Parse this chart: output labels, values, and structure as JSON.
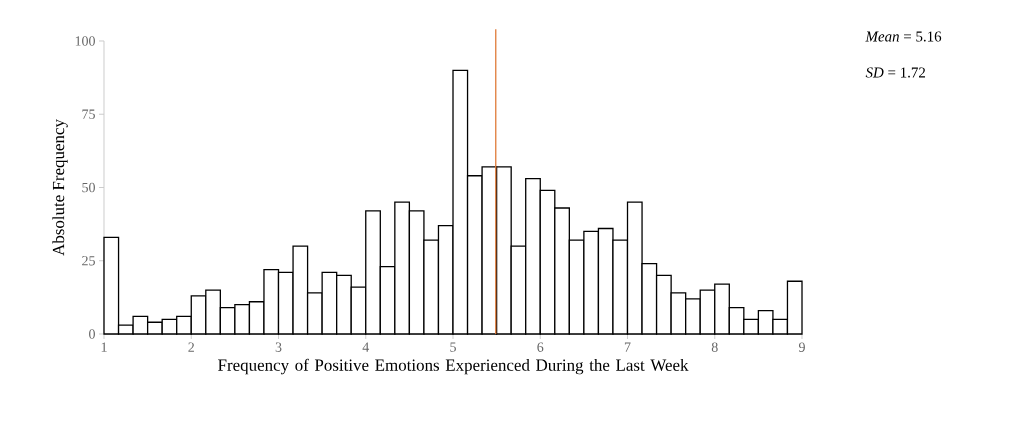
{
  "chart_data": {
    "type": "histogram",
    "xlabel": "Frequency of Positive Emotions Experienced During the Last Week",
    "ylabel": "Absolute Frequency",
    "bins": [
      1,
      1.1667,
      1.3333,
      1.5,
      1.6667,
      1.8333,
      2,
      2.1667,
      2.3333,
      2.5,
      2.6667,
      2.8333,
      3,
      3.1667,
      3.3333,
      3.5,
      3.6667,
      3.8333,
      4,
      4.1667,
      4.3333,
      4.5,
      4.6667,
      4.8333,
      5,
      5.1667,
      5.3333,
      5.5,
      5.6667,
      5.8333,
      6,
      6.1667,
      6.3333,
      6.5,
      6.6667,
      6.8333,
      7,
      7.1667,
      7.3333,
      7.5,
      7.6667,
      7.8333,
      8,
      8.1667,
      8.3333,
      8.5,
      8.6667,
      8.8333,
      9
    ],
    "values": [
      33,
      3,
      6,
      4,
      5,
      6,
      13,
      15,
      9,
      10,
      11,
      22,
      21,
      30,
      14,
      21,
      20,
      16,
      42,
      23,
      45,
      42,
      32,
      37,
      90,
      54,
      57,
      57,
      30,
      53,
      49,
      43,
      32,
      35,
      36,
      32,
      45,
      24,
      20,
      14,
      12,
      15,
      17,
      9,
      5,
      8,
      5,
      18
    ],
    "color": "#ffffff",
    "xlim": [
      1,
      9
    ],
    "xticks": [
      1,
      2,
      3,
      4,
      5,
      6,
      7,
      8,
      9
    ],
    "ylim": [
      0,
      100
    ],
    "yticks": [
      0,
      25,
      50,
      75,
      100
    ],
    "ref_lines": [
      {
        "axis": "x",
        "value": 5.49,
        "color": "#e07b39"
      }
    ],
    "annotations": [
      "*Mean* = 5.16",
      "*SD* = 1.72"
    ]
  }
}
